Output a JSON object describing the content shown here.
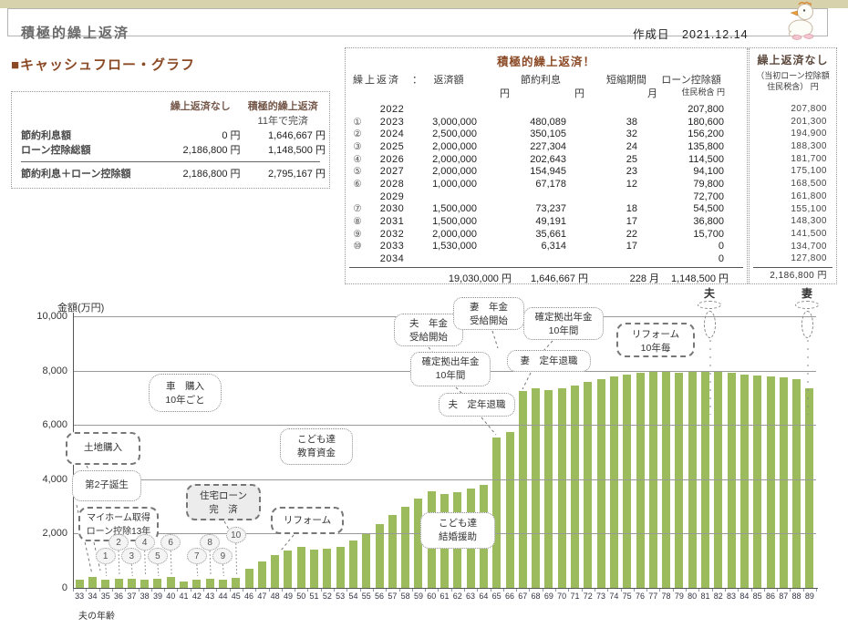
{
  "colors": {
    "accent_brown": "#8b4a26",
    "bar_green": "#9cbb5c",
    "top_strip_tan": "#d8d2ac"
  },
  "header": {
    "title": "積極的繰上返済",
    "date_label": "作成日",
    "date": "2021.12.14"
  },
  "section_title": "■キャッシュフロー・グラフ",
  "summary_table": {
    "col_headers": {
      "no_prepay": "繰上返済なし",
      "active": "積極的繰上返済"
    },
    "subheader": "11年で完済",
    "rows": [
      {
        "label": "節約利息額",
        "no_prepay": "0 円",
        "active": "1,646,667 円"
      },
      {
        "label": "ローン控除総額",
        "no_prepay": "2,186,800 円",
        "active": "1,148,500 円"
      }
    ],
    "total_row": {
      "label": "節約利息＋ローン控除額",
      "no_prepay": "2,186,800 円",
      "active": "2,795,167 円"
    }
  },
  "prepay_table": {
    "title": "積極的繰上返済！",
    "right_title": "繰上返済なし",
    "row_label": "繰上返済　：",
    "col_headers": [
      {
        "name": "返済額",
        "unit": "円"
      },
      {
        "name": "節約利息",
        "unit": "円"
      },
      {
        "name": "短縮期間",
        "unit": "月"
      },
      {
        "name": "ローン控除額",
        "unit": "住民税含 円"
      }
    ],
    "right_col_header": "（当初ローン控除額\n住民税含） 円",
    "rows": [
      {
        "no": "",
        "year": "2022",
        "amount": "",
        "interest": "",
        "months": "",
        "deduction": "207,800",
        "no_prepay": "207,800"
      },
      {
        "no": "①",
        "year": "2023",
        "amount": "3,000,000",
        "interest": "480,089",
        "months": "38",
        "deduction": "180,600",
        "no_prepay": "201,300"
      },
      {
        "no": "②",
        "year": "2024",
        "amount": "2,500,000",
        "interest": "350,105",
        "months": "32",
        "deduction": "156,200",
        "no_prepay": "194,900"
      },
      {
        "no": "③",
        "year": "2025",
        "amount": "2,000,000",
        "interest": "227,304",
        "months": "24",
        "deduction": "135,800",
        "no_prepay": "188,300"
      },
      {
        "no": "④",
        "year": "2026",
        "amount": "2,000,000",
        "interest": "202,643",
        "months": "25",
        "deduction": "114,500",
        "no_prepay": "181,700"
      },
      {
        "no": "⑤",
        "year": "2027",
        "amount": "2,000,000",
        "interest": "154,945",
        "months": "23",
        "deduction": "94,100",
        "no_prepay": "175,100"
      },
      {
        "no": "⑥",
        "year": "2028",
        "amount": "1,000,000",
        "interest": "67,178",
        "months": "12",
        "deduction": "79,800",
        "no_prepay": "168,500"
      },
      {
        "no": "",
        "year": "2029",
        "amount": "",
        "interest": "",
        "months": "",
        "deduction": "72,700",
        "no_prepay": "161,800"
      },
      {
        "no": "⑦",
        "year": "2030",
        "amount": "1,500,000",
        "interest": "73,237",
        "months": "18",
        "deduction": "54,500",
        "no_prepay": "155,100"
      },
      {
        "no": "⑧",
        "year": "2031",
        "amount": "1,500,000",
        "interest": "49,191",
        "months": "17",
        "deduction": "36,800",
        "no_prepay": "148,300"
      },
      {
        "no": "⑨",
        "year": "2032",
        "amount": "2,000,000",
        "interest": "35,661",
        "months": "22",
        "deduction": "15,700",
        "no_prepay": "141,500"
      },
      {
        "no": "⑩",
        "year": "2033",
        "amount": "1,530,000",
        "interest": "6,314",
        "months": "17",
        "deduction": "0",
        "no_prepay": "134,700"
      },
      {
        "no": "",
        "year": "2034",
        "amount": "",
        "interest": "",
        "months": "",
        "deduction": "0",
        "no_prepay": "127,800"
      }
    ],
    "total": {
      "amount": "19,030,000 円",
      "interest": "1,646,667 円",
      "months": "228 月",
      "deduction": "1,148,500 円",
      "no_prepay": "2,186,800 円"
    }
  },
  "chart_data": {
    "type": "bar",
    "ylabel": "金額(万円)",
    "xlabel": "夫の年齢",
    "ylim": [
      0,
      10000
    ],
    "yticks": [
      "0",
      "2,000",
      "4,000",
      "6,000",
      "8,000",
      "10,000"
    ],
    "grid": true,
    "bar_color": "#9cbb5c",
    "x": [
      33,
      34,
      35,
      36,
      37,
      38,
      39,
      40,
      41,
      42,
      43,
      44,
      45,
      46,
      47,
      48,
      49,
      50,
      51,
      52,
      53,
      54,
      55,
      56,
      57,
      58,
      59,
      60,
      61,
      62,
      63,
      64,
      65,
      66,
      67,
      68,
      69,
      70,
      71,
      72,
      73,
      74,
      75,
      76,
      77,
      78,
      79,
      80,
      81,
      82,
      83,
      84,
      85,
      86,
      87,
      88,
      89
    ],
    "values": [
      300,
      400,
      300,
      330,
      330,
      300,
      330,
      400,
      250,
      300,
      330,
      300,
      380,
      700,
      980,
      1200,
      1370,
      1520,
      1420,
      1460,
      1520,
      1750,
      1970,
      2340,
      2680,
      3000,
      3290,
      3550,
      3450,
      3520,
      3650,
      3780,
      5550,
      5750,
      7250,
      7350,
      7280,
      7360,
      7450,
      7580,
      7700,
      7790,
      7860,
      7920,
      7950,
      7980,
      7920,
      7950,
      7970,
      7940,
      7910,
      7870,
      7830,
      7790,
      7740,
      7680,
      7350
    ]
  },
  "annotations": {
    "car": {
      "text": "車　購入\n10年ごと"
    },
    "land": {
      "text": "土地購入"
    },
    "child": {
      "text": "第2子誕生"
    },
    "myhome": {
      "text": "マイホーム取得\nローン控除13年"
    },
    "paid": {
      "text": "住宅ローン\n完　済"
    },
    "reform1": {
      "text": "リフォーム"
    },
    "edu": {
      "text": "こども達\n教育資金"
    },
    "marriage": {
      "text": "こども達\n結婚援助"
    },
    "hretire": {
      "text": "夫　定年退職"
    },
    "dch": {
      "text": "確定拠出年金\n10年間"
    },
    "hpension": {
      "text": "夫　年金\n受給開始"
    },
    "wpension": {
      "text": "妻　年金\n受給開始"
    },
    "dcw": {
      "text": "確定拠出年金\n10年間"
    },
    "wretire": {
      "text": "妻　定年退職"
    },
    "reform10": {
      "text": "リフォーム\n10年毎"
    },
    "husband_marker": {
      "text": "夫"
    },
    "wife_marker": {
      "text": "妻"
    }
  },
  "balloons": {
    "labels": [
      "1",
      "2",
      "3",
      "4",
      "5",
      "6",
      "7",
      "8",
      "9",
      "10"
    ],
    "ages": [
      35,
      36,
      37,
      38,
      39,
      40,
      42,
      43,
      44,
      45
    ]
  }
}
